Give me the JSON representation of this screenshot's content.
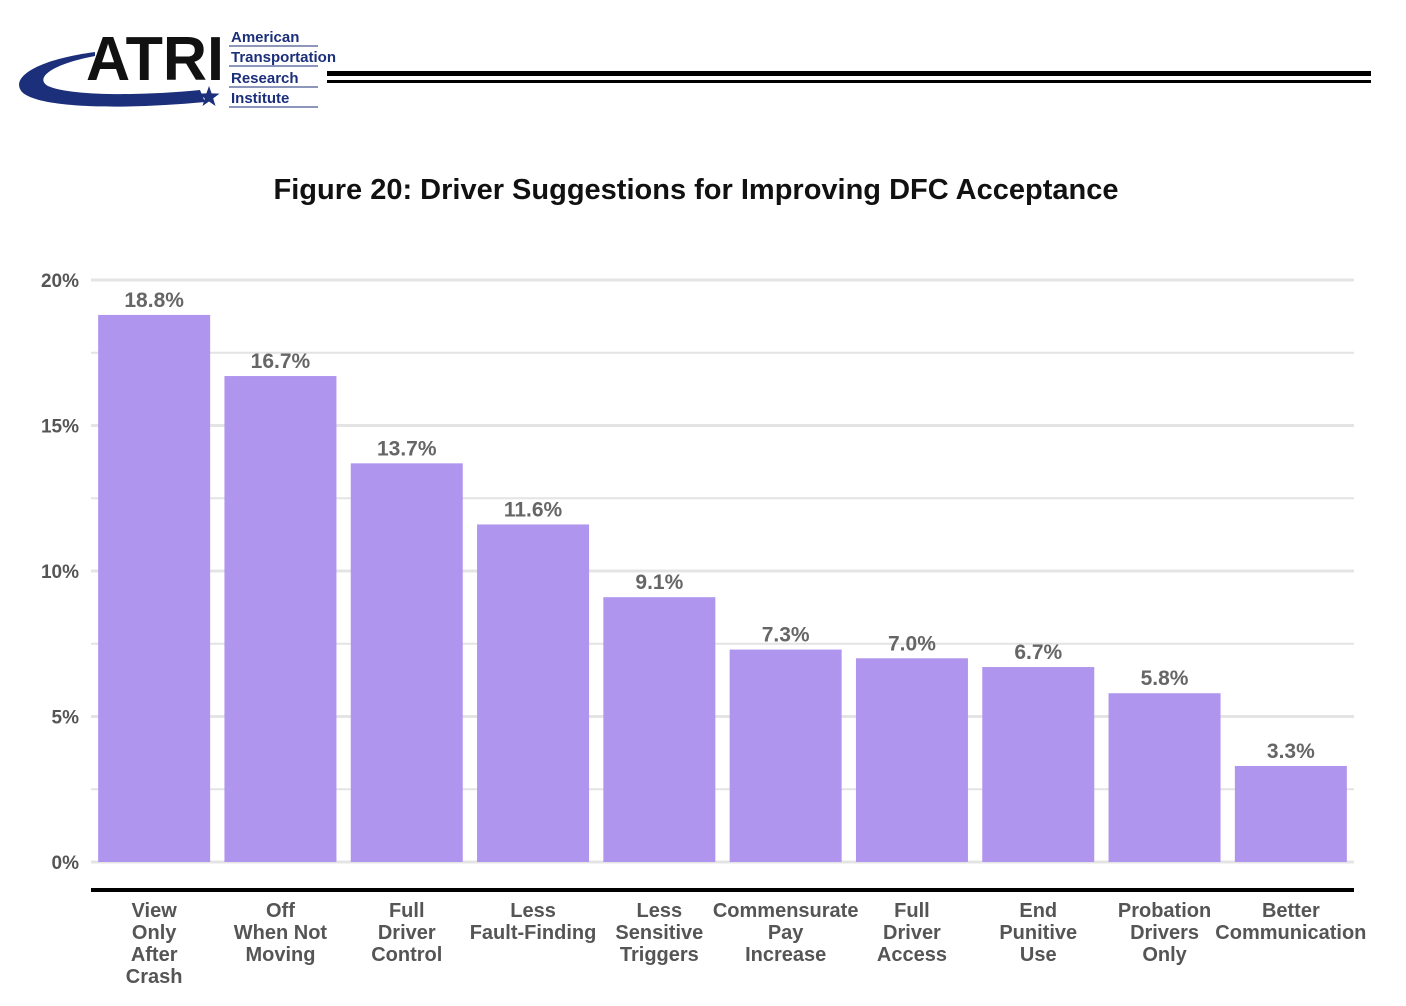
{
  "logo": {
    "acronym": "ATRI",
    "lines": [
      "American",
      "Transportation",
      "Research",
      "Institute"
    ],
    "colors": {
      "navy": "#1b2f7a",
      "text": "#111111"
    }
  },
  "figure_title": "Figure 20: Driver Suggestions for Improving DFC Acceptance",
  "chart_data": {
    "type": "bar",
    "title": "Figure 20: Driver Suggestions for Improving DFC Acceptance",
    "xlabel": "",
    "ylabel": "",
    "categories": [
      "View Only After Crash",
      "Off When Not Moving",
      "Full Driver Control",
      "Less Fault-Finding",
      "Less Sensitive Triggers",
      "Commensurate Pay Increase",
      "Full Driver Access",
      "End Punitive Use",
      "Probation Drivers Only",
      "Better Communication"
    ],
    "category_lines": [
      [
        "View",
        "Only",
        "After",
        "Crash"
      ],
      [
        "Off",
        "When Not",
        "Moving"
      ],
      [
        "Full",
        "Driver",
        "Control"
      ],
      [
        "Less",
        "Fault-Finding"
      ],
      [
        "Less",
        "Sensitive",
        "Triggers"
      ],
      [
        "Commensurate",
        "Pay",
        "Increase"
      ],
      [
        "Full",
        "Driver",
        "Access"
      ],
      [
        "End",
        "Punitive",
        "Use"
      ],
      [
        "Probation",
        "Drivers",
        "Only"
      ],
      [
        "Better",
        "Communication"
      ]
    ],
    "values": [
      18.8,
      16.7,
      13.7,
      11.6,
      9.1,
      7.3,
      7.0,
      6.7,
      5.8,
      3.3
    ],
    "value_labels": [
      "18.8%",
      "16.7%",
      "13.7%",
      "11.6%",
      "9.1%",
      "7.3%",
      "7.0%",
      "6.7%",
      "5.8%",
      "3.3%"
    ],
    "ylim": [
      0,
      20
    ],
    "yticks": [
      0,
      5,
      10,
      15,
      20
    ],
    "ytick_labels": [
      "0%",
      "5%",
      "10%",
      "15%",
      "20%"
    ],
    "minor_gridlines": [
      2.5,
      7.5,
      12.5,
      17.5
    ],
    "grid": true,
    "legend": "none",
    "bar_color": "#b095ee",
    "grid_color": "#e4e4e4"
  }
}
